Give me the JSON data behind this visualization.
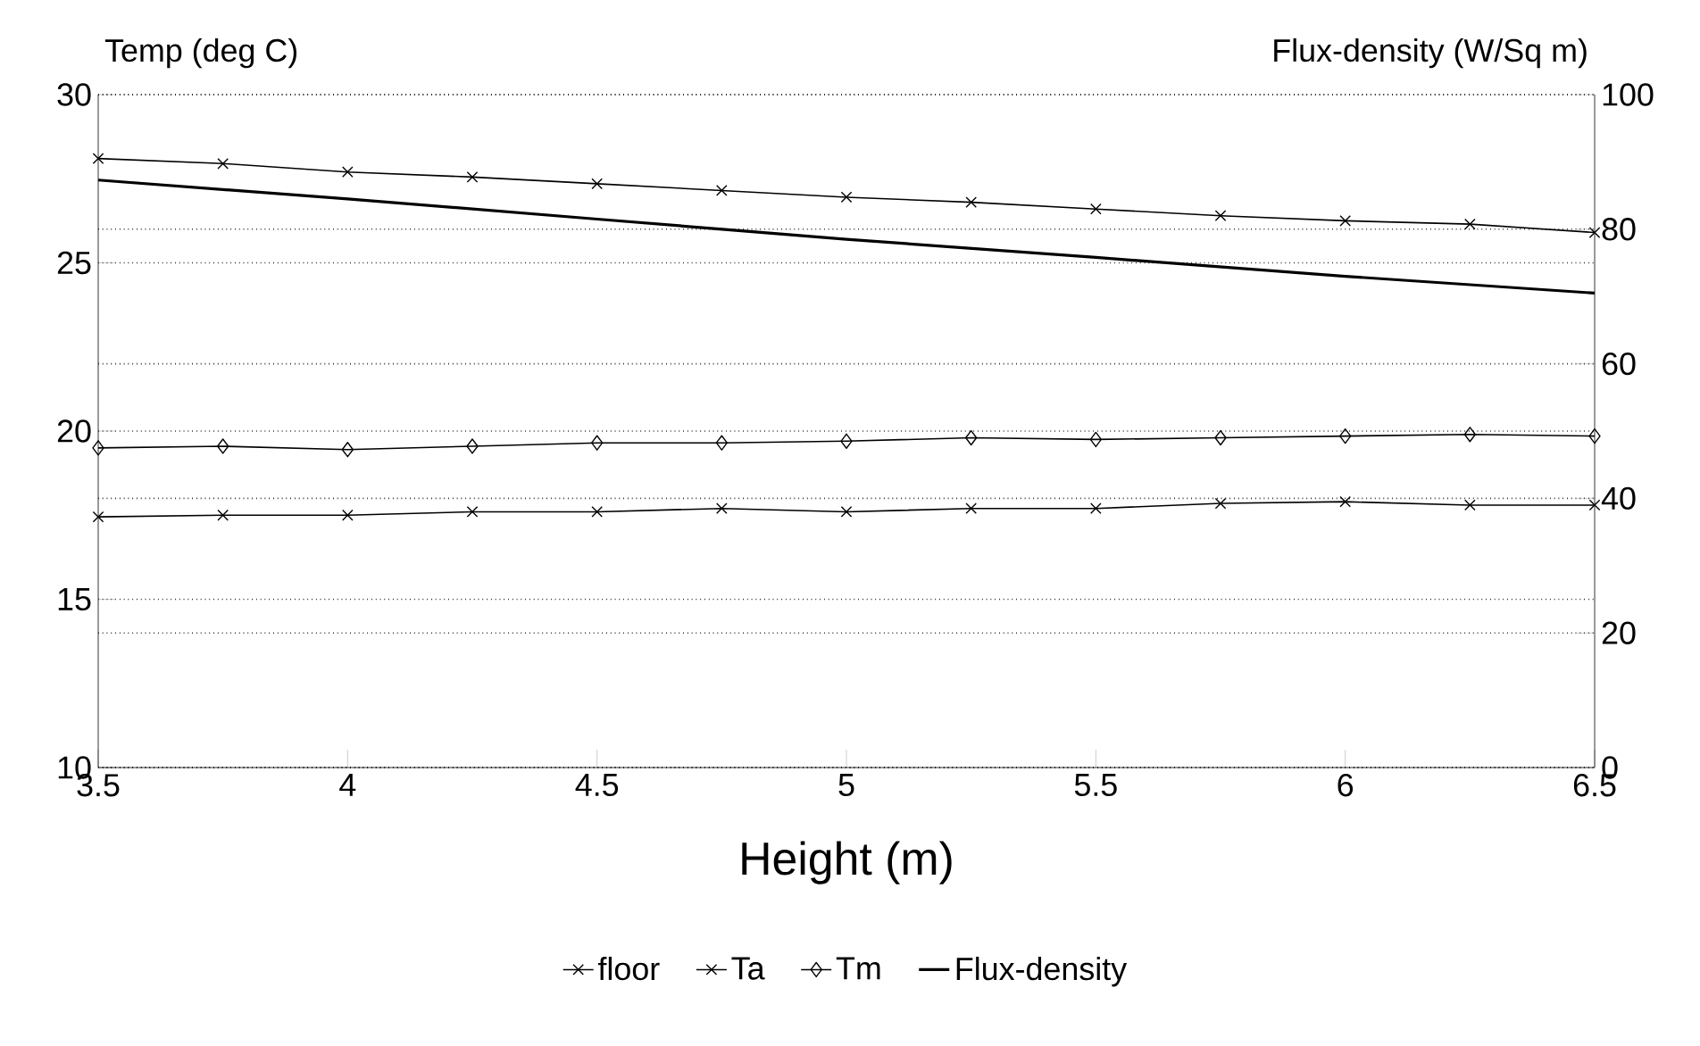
{
  "chart_data": {
    "type": "line",
    "xlabel": "Height (m)",
    "ylabel": "Temp (deg C)",
    "y2label": "Flux-density (W/Sq m)",
    "xlim": [
      3.5,
      6.5
    ],
    "xticks": [
      3.5,
      4,
      4.5,
      5,
      5.5,
      6,
      6.5
    ],
    "ylim": [
      10,
      30
    ],
    "yticks": [
      10,
      15,
      20,
      25,
      30
    ],
    "y2lim": [
      0,
      100
    ],
    "y2ticks": [
      0,
      20,
      40,
      60,
      80,
      100
    ],
    "grid": "y",
    "legend": "bottom",
    "series": [
      {
        "name": "floor",
        "color": "#000000",
        "marker": "cross",
        "x": [
          3.5,
          3.75,
          4,
          4.25,
          4.5,
          4.75,
          5,
          5.25,
          5.5,
          5.75,
          6,
          6.25,
          6.5
        ],
        "values": [
          28.1,
          27.95,
          27.7,
          27.55,
          27.35,
          27.15,
          26.95,
          26.8,
          26.6,
          26.4,
          26.25,
          26.15,
          25.9
        ]
      },
      {
        "name": "Ta",
        "color": "#000000",
        "marker": "cross",
        "x": [
          3.5,
          3.75,
          4,
          4.25,
          4.5,
          4.75,
          5,
          5.25,
          5.5,
          5.75,
          6,
          6.25,
          6.5
        ],
        "values": [
          17.45,
          17.5,
          17.5,
          17.6,
          17.6,
          17.7,
          17.6,
          17.7,
          17.7,
          17.85,
          17.9,
          17.8,
          17.8
        ]
      },
      {
        "name": "Tm",
        "color": "#000000",
        "marker": "diamond",
        "x": [
          3.5,
          3.75,
          4,
          4.25,
          4.5,
          4.75,
          5,
          5.25,
          5.5,
          5.75,
          6,
          6.25,
          6.5
        ],
        "values": [
          19.5,
          19.55,
          19.45,
          19.55,
          19.65,
          19.65,
          19.7,
          19.8,
          19.75,
          19.8,
          19.85,
          19.9,
          19.85
        ]
      },
      {
        "name": "Flux-density",
        "color": "#000000",
        "marker": "none",
        "axis": "y2",
        "x": [
          3.5,
          4,
          4.5,
          5,
          5.5,
          6,
          6.5
        ],
        "values": [
          87.3,
          84.5,
          81.5,
          78.5,
          75.8,
          73,
          70.5
        ]
      }
    ]
  }
}
